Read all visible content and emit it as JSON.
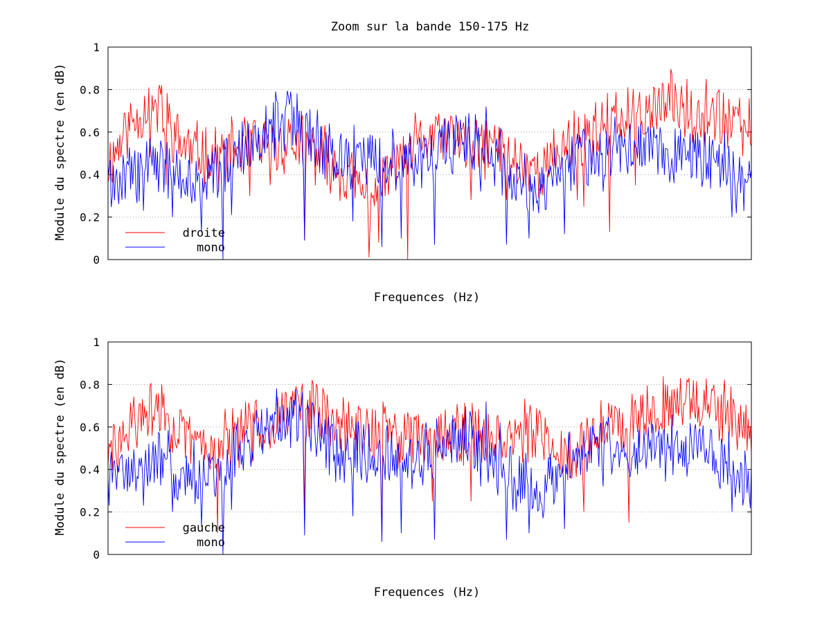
{
  "figure_title": "Zoom sur la bande 150-175 Hz",
  "colors": {
    "series_red": "#ff0000",
    "series_blue": "#0000ff"
  },
  "chart_data": [
    {
      "type": "line",
      "xlabel": "Frequences (Hz)",
      "ylabel": "Module du spectre (en dB)",
      "ylim": [
        0,
        1
      ],
      "yticks": [
        "0",
        "0.2",
        "0.4",
        "0.6",
        "0.8",
        "1"
      ],
      "grid": true,
      "x_tick_labels": false,
      "legend_position": "bottom-left",
      "n_points": 600,
      "series": [
        {
          "name": "droite",
          "color": "#ff0000",
          "anchors": [
            [
              0,
              0.45
            ],
            [
              0.03,
              0.62
            ],
            [
              0.06,
              0.72
            ],
            [
              0.09,
              0.68
            ],
            [
              0.11,
              0.55
            ],
            [
              0.14,
              0.5
            ],
            [
              0.17,
              0.48
            ],
            [
              0.2,
              0.52
            ],
            [
              0.22,
              0.55
            ],
            [
              0.25,
              0.5
            ],
            [
              0.28,
              0.56
            ],
            [
              0.31,
              0.52
            ],
            [
              0.34,
              0.48
            ],
            [
              0.37,
              0.4
            ],
            [
              0.4,
              0.3
            ],
            [
              0.43,
              0.38
            ],
            [
              0.46,
              0.5
            ],
            [
              0.49,
              0.56
            ],
            [
              0.52,
              0.58
            ],
            [
              0.55,
              0.56
            ],
            [
              0.58,
              0.52
            ],
            [
              0.6,
              0.55
            ],
            [
              0.62,
              0.48
            ],
            [
              0.65,
              0.44
            ],
            [
              0.68,
              0.42
            ],
            [
              0.7,
              0.5
            ],
            [
              0.72,
              0.56
            ],
            [
              0.75,
              0.6
            ],
            [
              0.78,
              0.64
            ],
            [
              0.82,
              0.68
            ],
            [
              0.85,
              0.72
            ],
            [
              0.88,
              0.74
            ],
            [
              0.91,
              0.7
            ],
            [
              0.94,
              0.68
            ],
            [
              0.97,
              0.64
            ],
            [
              1,
              0.6
            ]
          ],
          "dips": [
            [
              0.065,
              0.48
            ],
            [
              0.09,
              0.35
            ],
            [
              0.13,
              0.45
            ],
            [
              0.155,
              0.38
            ],
            [
              0.22,
              0.3
            ],
            [
              0.305,
              0.09
            ],
            [
              0.34,
              0.35
            ],
            [
              0.405,
              0.01
            ],
            [
              0.42,
              0.08
            ],
            [
              0.465,
              0.0
            ],
            [
              0.565,
              0.28
            ],
            [
              0.62,
              0.28
            ],
            [
              0.73,
              0.28
            ],
            [
              0.74,
              0.25
            ],
            [
              0.78,
              0.13
            ],
            [
              0.82,
              0.35
            ]
          ],
          "peaks": [
            [
              0.063,
              0.81
            ],
            [
              0.084,
              0.82
            ],
            [
              0.9,
              0.85
            ],
            [
              0.93,
              0.85
            ],
            [
              0.95,
              0.8
            ]
          ]
        },
        {
          "name": "mono",
          "color": "#0000ff",
          "anchors": [
            [
              0,
              0.35
            ],
            [
              0.03,
              0.4
            ],
            [
              0.06,
              0.42
            ],
            [
              0.09,
              0.45
            ],
            [
              0.11,
              0.35
            ],
            [
              0.14,
              0.38
            ],
            [
              0.17,
              0.42
            ],
            [
              0.2,
              0.48
            ],
            [
              0.24,
              0.58
            ],
            [
              0.27,
              0.66
            ],
            [
              0.3,
              0.64
            ],
            [
              0.33,
              0.55
            ],
            [
              0.36,
              0.45
            ],
            [
              0.39,
              0.48
            ],
            [
              0.42,
              0.5
            ],
            [
              0.46,
              0.45
            ],
            [
              0.49,
              0.48
            ],
            [
              0.52,
              0.55
            ],
            [
              0.55,
              0.58
            ],
            [
              0.58,
              0.52
            ],
            [
              0.61,
              0.42
            ],
            [
              0.64,
              0.35
            ],
            [
              0.67,
              0.32
            ],
            [
              0.7,
              0.4
            ],
            [
              0.73,
              0.5
            ],
            [
              0.76,
              0.5
            ],
            [
              0.79,
              0.52
            ],
            [
              0.82,
              0.5
            ],
            [
              0.85,
              0.52
            ],
            [
              0.88,
              0.5
            ],
            [
              0.91,
              0.5
            ],
            [
              0.94,
              0.48
            ],
            [
              0.97,
              0.4
            ],
            [
              1,
              0.32
            ]
          ],
          "dips": [
            [
              0.055,
              0.23
            ],
            [
              0.1,
              0.2
            ],
            [
              0.145,
              0.13
            ],
            [
              0.178,
              0.0
            ],
            [
              0.192,
              0.21
            ],
            [
              0.305,
              0.09
            ],
            [
              0.38,
              0.18
            ],
            [
              0.425,
              0.06
            ],
            [
              0.455,
              0.1
            ],
            [
              0.508,
              0.07
            ],
            [
              0.58,
              0.32
            ],
            [
              0.62,
              0.07
            ],
            [
              0.655,
              0.1
            ],
            [
              0.71,
              0.12
            ],
            [
              0.77,
              0.32
            ],
            [
              0.97,
              0.2
            ]
          ],
          "peaks": [
            [
              0.285,
              0.74
            ],
            [
              0.3,
              0.7
            ],
            [
              0.588,
              0.72
            ],
            [
              0.61,
              0.62
            ]
          ]
        }
      ]
    },
    {
      "type": "line",
      "xlabel": "Frequences (Hz)",
      "ylabel": "Module du spectre (en dB)",
      "ylim": [
        0,
        1
      ],
      "yticks": [
        "0",
        "0.2",
        "0.4",
        "0.6",
        "0.8",
        "1"
      ],
      "grid": true,
      "x_tick_labels": false,
      "legend_position": "bottom-left",
      "n_points": 600,
      "series": [
        {
          "name": "gauche",
          "color": "#ff0000",
          "anchors": [
            [
              0,
              0.45
            ],
            [
              0.03,
              0.58
            ],
            [
              0.06,
              0.66
            ],
            [
              0.09,
              0.66
            ],
            [
              0.11,
              0.55
            ],
            [
              0.14,
              0.52
            ],
            [
              0.17,
              0.52
            ],
            [
              0.2,
              0.55
            ],
            [
              0.23,
              0.6
            ],
            [
              0.27,
              0.66
            ],
            [
              0.3,
              0.72
            ],
            [
              0.33,
              0.66
            ],
            [
              0.36,
              0.6
            ],
            [
              0.39,
              0.58
            ],
            [
              0.42,
              0.58
            ],
            [
              0.46,
              0.56
            ],
            [
              0.49,
              0.55
            ],
            [
              0.52,
              0.58
            ],
            [
              0.55,
              0.58
            ],
            [
              0.58,
              0.55
            ],
            [
              0.61,
              0.56
            ],
            [
              0.64,
              0.58
            ],
            [
              0.67,
              0.55
            ],
            [
              0.7,
              0.48
            ],
            [
              0.73,
              0.5
            ],
            [
              0.76,
              0.58
            ],
            [
              0.79,
              0.62
            ],
            [
              0.82,
              0.66
            ],
            [
              0.85,
              0.7
            ],
            [
              0.88,
              0.72
            ],
            [
              0.91,
              0.74
            ],
            [
              0.94,
              0.68
            ],
            [
              0.97,
              0.64
            ],
            [
              1,
              0.56
            ]
          ],
          "dips": [
            [
              0.17,
              0.1
            ],
            [
              0.305,
              0.19
            ],
            [
              0.425,
              0.06
            ],
            [
              0.505,
              0.25
            ],
            [
              0.565,
              0.25
            ],
            [
              0.74,
              0.2
            ],
            [
              0.81,
              0.15
            ],
            [
              0.715,
              0.35
            ]
          ],
          "peaks": [
            [
              0.065,
              0.79
            ],
            [
              0.083,
              0.8
            ],
            [
              0.3,
              0.77
            ],
            [
              0.89,
              0.83
            ],
            [
              0.91,
              0.82
            ]
          ]
        },
        {
          "name": "mono",
          "color": "#0000ff",
          "anchors": [
            [
              0,
              0.35
            ],
            [
              0.03,
              0.4
            ],
            [
              0.06,
              0.42
            ],
            [
              0.09,
              0.45
            ],
            [
              0.11,
              0.35
            ],
            [
              0.14,
              0.38
            ],
            [
              0.17,
              0.42
            ],
            [
              0.2,
              0.48
            ],
            [
              0.24,
              0.58
            ],
            [
              0.27,
              0.66
            ],
            [
              0.3,
              0.64
            ],
            [
              0.33,
              0.55
            ],
            [
              0.36,
              0.45
            ],
            [
              0.39,
              0.48
            ],
            [
              0.42,
              0.5
            ],
            [
              0.46,
              0.45
            ],
            [
              0.49,
              0.48
            ],
            [
              0.52,
              0.55
            ],
            [
              0.55,
              0.58
            ],
            [
              0.58,
              0.52
            ],
            [
              0.61,
              0.42
            ],
            [
              0.64,
              0.35
            ],
            [
              0.67,
              0.32
            ],
            [
              0.7,
              0.4
            ],
            [
              0.73,
              0.5
            ],
            [
              0.76,
              0.5
            ],
            [
              0.79,
              0.52
            ],
            [
              0.82,
              0.5
            ],
            [
              0.85,
              0.52
            ],
            [
              0.88,
              0.5
            ],
            [
              0.91,
              0.5
            ],
            [
              0.94,
              0.48
            ],
            [
              0.97,
              0.4
            ],
            [
              1,
              0.32
            ]
          ],
          "dips": [
            [
              0.055,
              0.23
            ],
            [
              0.1,
              0.2
            ],
            [
              0.145,
              0.13
            ],
            [
              0.178,
              0.0
            ],
            [
              0.192,
              0.21
            ],
            [
              0.305,
              0.09
            ],
            [
              0.38,
              0.18
            ],
            [
              0.425,
              0.06
            ],
            [
              0.455,
              0.1
            ],
            [
              0.508,
              0.07
            ],
            [
              0.58,
              0.32
            ],
            [
              0.62,
              0.07
            ],
            [
              0.655,
              0.1
            ],
            [
              0.71,
              0.12
            ],
            [
              0.77,
              0.32
            ],
            [
              0.97,
              0.2
            ]
          ],
          "peaks": [
            [
              0.285,
              0.74
            ],
            [
              0.3,
              0.7
            ],
            [
              0.588,
              0.72
            ],
            [
              0.61,
              0.62
            ]
          ]
        }
      ]
    }
  ]
}
